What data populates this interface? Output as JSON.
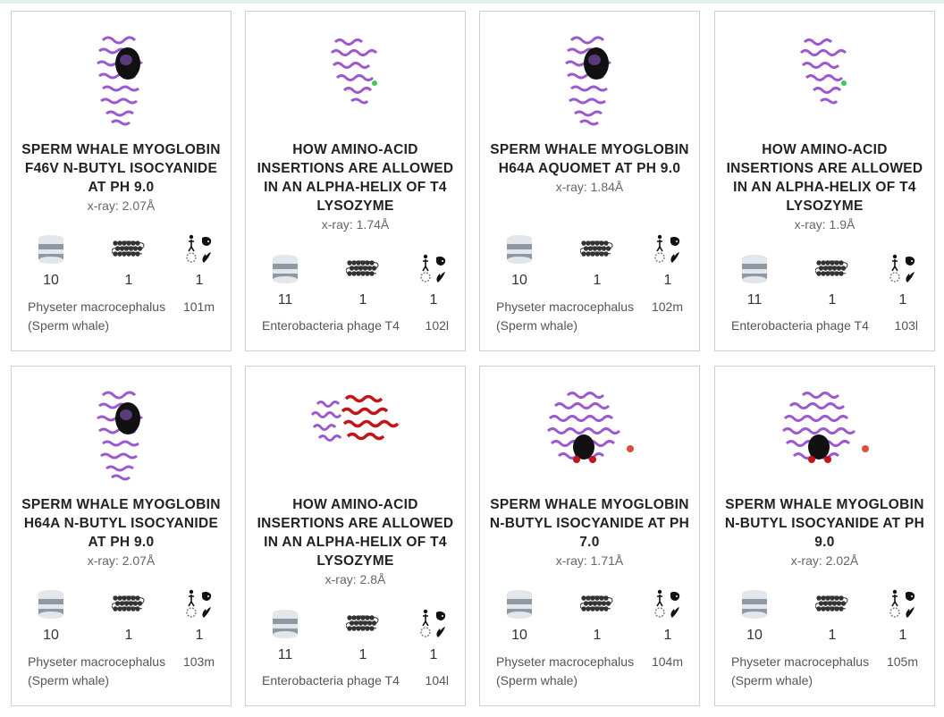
{
  "entries": [
    {
      "title": "SPERM WHALE MYOGLOBIN F46V N-BUTYL ISOCYANIDE AT PH 9.0",
      "resolution": "x-ray: 2.07Å",
      "assemblies": "10",
      "chains": "1",
      "organisms": "1",
      "organism_name": "Physeter macrocephalus (Sperm whale)",
      "pdb_id": "101m",
      "image": "myoglobin-structure-image"
    },
    {
      "title": "HOW AMINO-ACID INSERTIONS ARE ALLOWED IN AN ALPHA-HELIX OF T4 LYSOZYME",
      "resolution": "x-ray: 1.74Å",
      "assemblies": "11",
      "chains": "1",
      "organisms": "1",
      "organism_name": "Enterobacteria phage T4",
      "pdb_id": "102l",
      "image": "lysozyme-structure-image"
    },
    {
      "title": "SPERM WHALE MYOGLOBIN H64A AQUOMET AT PH 9.0",
      "resolution": "x-ray: 1.84Å",
      "assemblies": "10",
      "chains": "1",
      "organisms": "1",
      "organism_name": "Physeter macrocephalus (Sperm whale)",
      "pdb_id": "102m",
      "image": "myoglobin-structure-image"
    },
    {
      "title": "HOW AMINO-ACID INSERTIONS ARE ALLOWED IN AN ALPHA-HELIX OF T4 LYSOZYME",
      "resolution": "x-ray: 1.9Å",
      "assemblies": "11",
      "chains": "1",
      "organisms": "1",
      "organism_name": "Enterobacteria phage T4",
      "pdb_id": "103l",
      "image": "lysozyme-structure-image"
    },
    {
      "title": "SPERM WHALE MYOGLOBIN H64A N-BUTYL ISOCYANIDE AT PH 9.0",
      "resolution": "x-ray: 2.07Å",
      "assemblies": "10",
      "chains": "1",
      "organisms": "1",
      "organism_name": "Physeter macrocephalus (Sperm whale)",
      "pdb_id": "103m",
      "image": "myoglobin-structure-image"
    },
    {
      "title": "HOW AMINO-ACID INSERTIONS ARE ALLOWED IN AN ALPHA-HELIX OF T4 LYSOZYME",
      "resolution": "x-ray: 2.8Å",
      "assemblies": "11",
      "chains": "1",
      "organisms": "1",
      "organism_name": "Enterobacteria phage T4",
      "pdb_id": "104l",
      "image": "lysozyme-dimer-structure-image"
    },
    {
      "title": "SPERM WHALE MYOGLOBIN N-BUTYL ISOCYANIDE AT PH 7.0",
      "resolution": "x-ray: 1.71Å",
      "assemblies": "10",
      "chains": "1",
      "organisms": "1",
      "organism_name": "Physeter macrocephalus (Sperm whale)",
      "pdb_id": "104m",
      "image": "myoglobin-round-structure-image"
    },
    {
      "title": "SPERM WHALE MYOGLOBIN N-BUTYL ISOCYANIDE AT PH 9.0",
      "resolution": "x-ray: 2.02Å",
      "assemblies": "10",
      "chains": "1",
      "organisms": "1",
      "organism_name": "Physeter macrocephalus (Sperm whale)",
      "pdb_id": "105m",
      "image": "myoglobin-round-structure-image"
    }
  ],
  "colors": {
    "helix_purple": "#9b59d0",
    "dark_ligand": "#111111",
    "red_chain": "#c0161a",
    "icon_gray": "#8f99a3",
    "border": "#cfcfcf"
  }
}
